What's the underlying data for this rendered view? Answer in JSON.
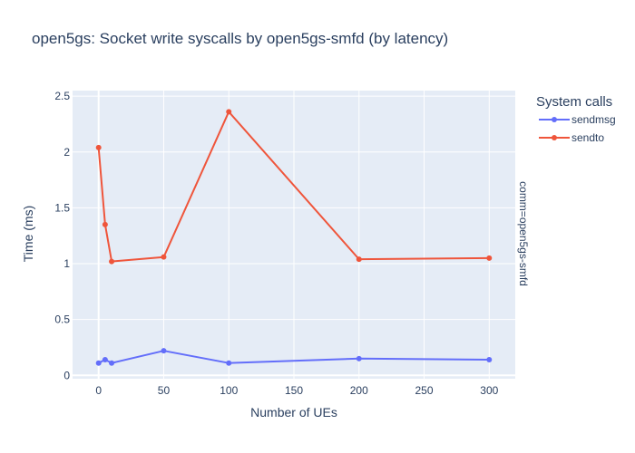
{
  "chart_data": {
    "type": "line",
    "title": "open5gs: Socket write syscalls by open5gs-smfd (by latency)",
    "xlabel": "Number of UEs",
    "ylabel": "Time (ms)",
    "facet_label": "comm=open5gs-smfd",
    "legend_title": "System calls",
    "legend_position": "top-right",
    "grid": true,
    "xlim": [
      -20,
      320
    ],
    "ylim": [
      -0.03,
      2.55
    ],
    "x_ticks": [
      0,
      50,
      100,
      150,
      200,
      250,
      300
    ],
    "y_ticks": [
      0,
      0.5,
      1,
      1.5,
      2,
      2.5
    ],
    "x_tick_labels": [
      "0",
      "50",
      "100",
      "150",
      "200",
      "250",
      "300"
    ],
    "y_tick_labels": [
      "0",
      "0.5",
      "1",
      "1.5",
      "2",
      "2.5"
    ],
    "series": [
      {
        "name": "sendmsg",
        "color": "#636efa",
        "x": [
          0,
          5,
          10,
          50,
          100,
          200,
          300
        ],
        "y": [
          0.11,
          0.14,
          0.11,
          0.22,
          0.11,
          0.15,
          0.14
        ]
      },
      {
        "name": "sendto",
        "color": "#ef553b",
        "x": [
          0,
          5,
          10,
          50,
          100,
          200,
          300
        ],
        "y": [
          2.04,
          1.35,
          1.02,
          1.06,
          2.36,
          1.04,
          1.05
        ]
      }
    ]
  }
}
